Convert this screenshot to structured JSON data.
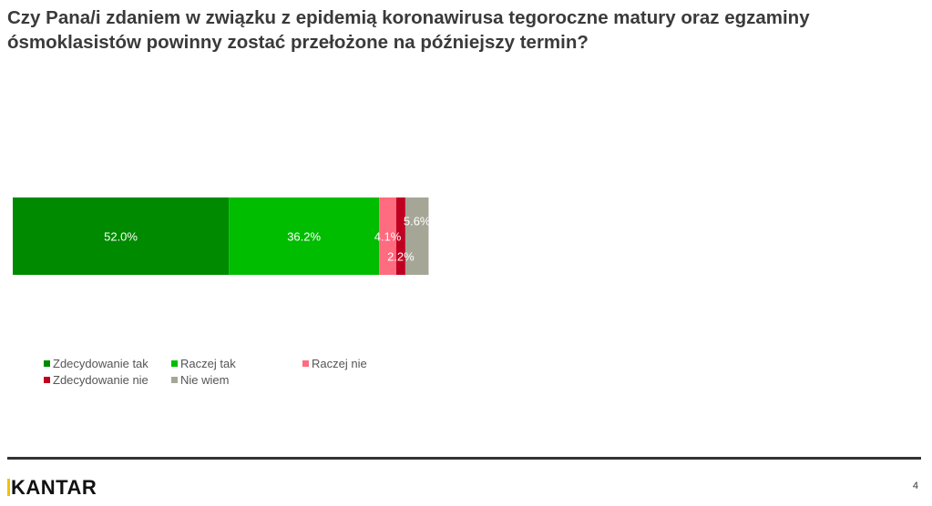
{
  "title": {
    "line1": "Czy Pana/i zdaniem w związku z epidemią koronawirusa tegoroczne matury oraz egzaminy",
    "line2": "ósmoklasistów powinny zostać przełożone na późniejszy termin?"
  },
  "chart_data": {
    "type": "bar",
    "orientation": "horizontal",
    "stacked": true,
    "categories": [
      ""
    ],
    "series": [
      {
        "name": "Zdecydowanie tak",
        "values": [
          52.0
        ],
        "label": "52.0%",
        "color": "#008a00"
      },
      {
        "name": "Raczej tak",
        "values": [
          36.2
        ],
        "label": "36.2%",
        "color": "#00bd00"
      },
      {
        "name": "Raczej nie",
        "values": [
          4.1
        ],
        "label": "4.1%",
        "color": "#ff6b7f"
      },
      {
        "name": "Zdecydowanie nie",
        "values": [
          2.2
        ],
        "label": "2.2%",
        "color": "#c00020"
      },
      {
        "name": "Nie wiem",
        "values": [
          5.6
        ],
        "label": "5.6%",
        "color": "#a6a697"
      }
    ],
    "xlim": [
      0,
      100
    ],
    "grid": false,
    "legend": "bottom-left"
  },
  "footer": {
    "brand": "KANTAR",
    "page_number": "4"
  }
}
